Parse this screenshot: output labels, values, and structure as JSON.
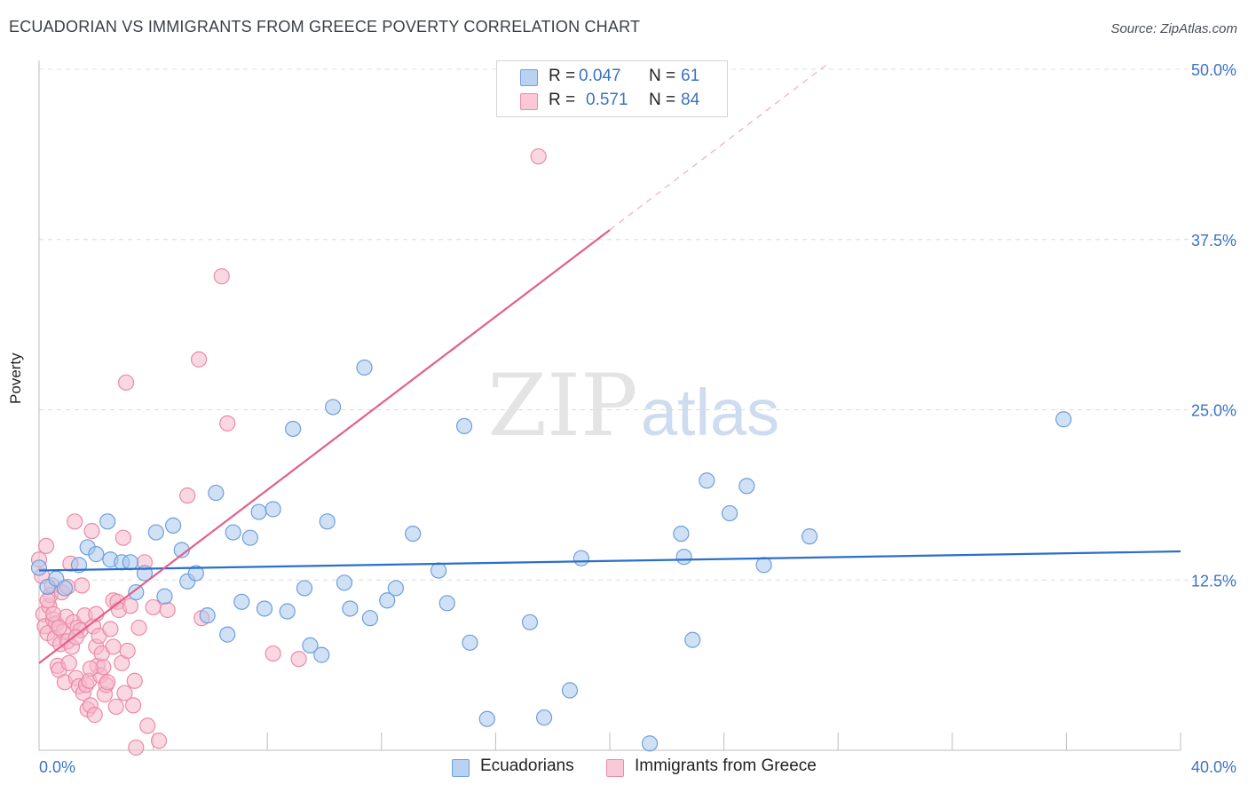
{
  "title": "ECUADORIAN VS IMMIGRANTS FROM GREECE POVERTY CORRELATION CHART",
  "source": "Source: ZipAtlas.com",
  "watermark": {
    "zip": "ZIP",
    "atlas": "atlas"
  },
  "colors": {
    "blue_fill": "#a9c8ef",
    "blue_stroke": "#6d9fdc",
    "blue_line": "#2a6fc9",
    "pink_fill": "#f6b8ca",
    "pink_stroke": "#ec8aa6",
    "pink_line": "#e45e8a",
    "grid": "#dcdcdc",
    "axis_text": "#3b73c4"
  },
  "legend": {
    "r_label": "R =",
    "n_label": "N =",
    "series": [
      {
        "r": "0.047",
        "n": "61"
      },
      {
        "r": "0.571",
        "n": "84"
      }
    ]
  },
  "chart_data": {
    "type": "scatter",
    "title": "ECUADORIAN VS IMMIGRANTS FROM GREECE POVERTY CORRELATION CHART",
    "xlabel": "",
    "ylabel": "Poverty",
    "xlim": [
      0,
      40
    ],
    "ylim": [
      0,
      50
    ],
    "x_tick_labels": [
      "0.0%",
      "40.0%"
    ],
    "y_ticks": [
      12.5,
      25.0,
      37.5,
      50.0
    ],
    "y_tick_labels": [
      "12.5%",
      "25.0%",
      "37.5%",
      "50.0%"
    ],
    "series": [
      {
        "name": "Ecuadorians",
        "trend": {
          "x": [
            0,
            40
          ],
          "y": [
            13.2,
            14.6
          ],
          "dashed_to": null
        },
        "points": [
          [
            0.0,
            13.4
          ],
          [
            0.3,
            12.0
          ],
          [
            0.6,
            12.6
          ],
          [
            0.9,
            11.9
          ],
          [
            1.4,
            13.6
          ],
          [
            1.7,
            14.9
          ],
          [
            2.0,
            14.4
          ],
          [
            2.4,
            16.8
          ],
          [
            2.5,
            14.0
          ],
          [
            2.9,
            13.8
          ],
          [
            3.2,
            13.8
          ],
          [
            3.4,
            11.6
          ],
          [
            3.7,
            13.0
          ],
          [
            4.1,
            16.0
          ],
          [
            4.4,
            11.3
          ],
          [
            4.7,
            16.5
          ],
          [
            5.0,
            14.7
          ],
          [
            5.2,
            12.4
          ],
          [
            5.5,
            13.0
          ],
          [
            5.9,
            9.9
          ],
          [
            6.2,
            18.9
          ],
          [
            6.6,
            8.5
          ],
          [
            6.8,
            16.0
          ],
          [
            7.1,
            10.9
          ],
          [
            7.4,
            15.6
          ],
          [
            7.7,
            17.5
          ],
          [
            7.9,
            10.4
          ],
          [
            8.2,
            17.7
          ],
          [
            8.7,
            10.2
          ],
          [
            8.9,
            23.6
          ],
          [
            9.3,
            11.9
          ],
          [
            9.5,
            7.7
          ],
          [
            9.9,
            7.0
          ],
          [
            10.1,
            16.8
          ],
          [
            10.3,
            25.2
          ],
          [
            10.7,
            12.3
          ],
          [
            10.9,
            10.4
          ],
          [
            11.4,
            28.1
          ],
          [
            11.6,
            9.7
          ],
          [
            12.2,
            11.0
          ],
          [
            12.5,
            11.9
          ],
          [
            13.1,
            15.9
          ],
          [
            14.0,
            13.2
          ],
          [
            14.3,
            10.8
          ],
          [
            14.9,
            23.8
          ],
          [
            15.1,
            7.9
          ],
          [
            15.7,
            2.3
          ],
          [
            17.2,
            9.4
          ],
          [
            17.7,
            2.4
          ],
          [
            18.6,
            4.4
          ],
          [
            19.0,
            14.1
          ],
          [
            21.4,
            0.5
          ],
          [
            22.5,
            15.9
          ],
          [
            22.6,
            14.2
          ],
          [
            22.9,
            8.1
          ],
          [
            23.4,
            19.8
          ],
          [
            24.2,
            17.4
          ],
          [
            24.8,
            19.4
          ],
          [
            25.4,
            13.6
          ],
          [
            27.0,
            15.7
          ],
          [
            35.9,
            24.3
          ]
        ]
      },
      {
        "name": "Immigrants from Greece",
        "trend": {
          "x": [
            0,
            20
          ],
          "y": [
            6.4,
            38.2
          ],
          "dashed_to": [
            27.7,
            50.5
          ]
        },
        "points": [
          [
            0.0,
            14.0
          ],
          [
            0.1,
            12.8
          ],
          [
            0.15,
            10.0
          ],
          [
            0.2,
            9.1
          ],
          [
            0.25,
            15.0
          ],
          [
            0.3,
            8.6
          ],
          [
            0.35,
            10.6
          ],
          [
            0.4,
            11.4
          ],
          [
            0.45,
            12.1
          ],
          [
            0.5,
            9.6
          ],
          [
            0.55,
            8.2
          ],
          [
            0.6,
            9.3
          ],
          [
            0.65,
            6.2
          ],
          [
            0.7,
            5.9
          ],
          [
            0.75,
            7.8
          ],
          [
            0.8,
            11.6
          ],
          [
            0.85,
            8.7
          ],
          [
            0.9,
            5.0
          ],
          [
            0.95,
            9.8
          ],
          [
            1.0,
            8.0
          ],
          [
            1.05,
            6.4
          ],
          [
            1.1,
            13.7
          ],
          [
            1.15,
            7.6
          ],
          [
            1.2,
            9.4
          ],
          [
            1.25,
            16.8
          ],
          [
            1.3,
            5.3
          ],
          [
            1.35,
            9.0
          ],
          [
            1.4,
            4.7
          ],
          [
            1.45,
            8.8
          ],
          [
            1.5,
            12.1
          ],
          [
            1.55,
            4.2
          ],
          [
            1.6,
            9.9
          ],
          [
            1.65,
            4.8
          ],
          [
            1.7,
            3.0
          ],
          [
            1.75,
            5.1
          ],
          [
            1.8,
            3.3
          ],
          [
            1.85,
            16.1
          ],
          [
            1.9,
            9.1
          ],
          [
            1.95,
            2.6
          ],
          [
            2.0,
            7.6
          ],
          [
            2.05,
            6.2
          ],
          [
            2.1,
            8.4
          ],
          [
            2.15,
            5.5
          ],
          [
            2.2,
            7.1
          ],
          [
            2.25,
            6.1
          ],
          [
            2.3,
            4.1
          ],
          [
            2.35,
            4.8
          ],
          [
            2.4,
            5.0
          ],
          [
            2.5,
            8.9
          ],
          [
            2.6,
            11.0
          ],
          [
            2.7,
            3.2
          ],
          [
            2.75,
            10.9
          ],
          [
            2.8,
            10.3
          ],
          [
            2.9,
            6.4
          ],
          [
            2.95,
            15.6
          ],
          [
            3.0,
            4.2
          ],
          [
            3.05,
            27.0
          ],
          [
            3.1,
            7.3
          ],
          [
            3.2,
            10.6
          ],
          [
            3.3,
            3.3
          ],
          [
            3.35,
            5.1
          ],
          [
            3.4,
            0.2
          ],
          [
            3.5,
            9.0
          ],
          [
            3.7,
            13.8
          ],
          [
            3.8,
            1.8
          ],
          [
            4.0,
            10.5
          ],
          [
            4.2,
            0.7
          ],
          [
            4.5,
            10.3
          ],
          [
            5.2,
            18.7
          ],
          [
            5.6,
            28.7
          ],
          [
            5.7,
            9.7
          ],
          [
            6.4,
            34.8
          ],
          [
            6.6,
            24.0
          ],
          [
            8.2,
            7.1
          ],
          [
            9.1,
            6.7
          ],
          [
            17.5,
            43.6
          ],
          [
            0.5,
            10.0
          ],
          [
            0.7,
            9.0
          ],
          [
            1.0,
            12.0
          ],
          [
            1.3,
            8.3
          ],
          [
            2.0,
            10.0
          ],
          [
            2.6,
            7.6
          ],
          [
            0.3,
            11.0
          ],
          [
            1.8,
            6.0
          ]
        ]
      }
    ]
  }
}
